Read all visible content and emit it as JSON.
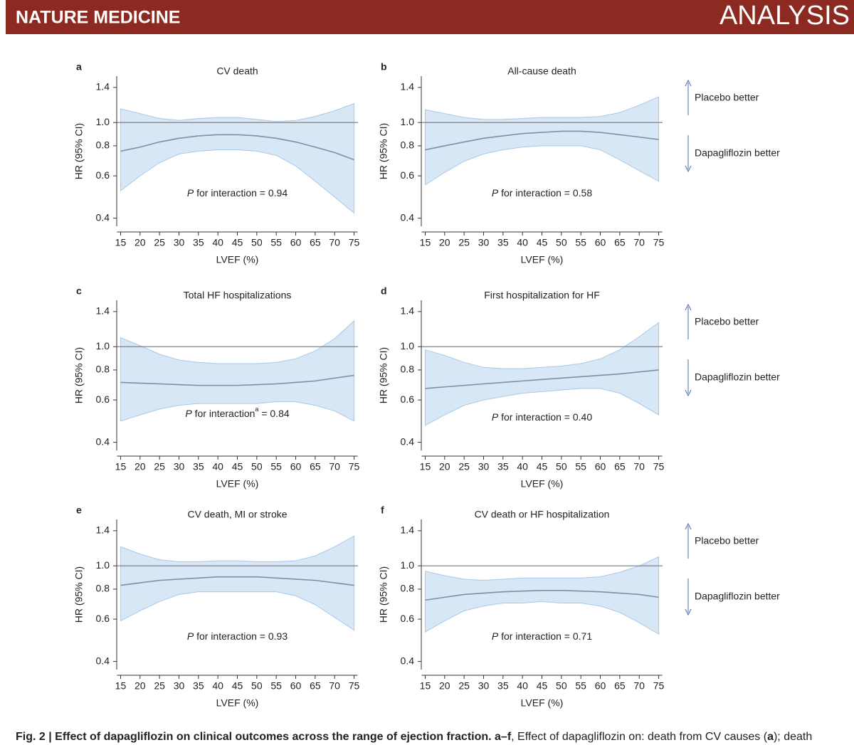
{
  "header": {
    "journal": "NATURE MEDICINE",
    "section": "ANALYSIS"
  },
  "side_labels": [
    {
      "up": "Placebo better",
      "down": "Dapagliflozin better"
    },
    {
      "up": "Placebo better",
      "down": "Dapagliflozin better"
    },
    {
      "up": "Placebo better",
      "down": "Dapagliflozin better"
    }
  ],
  "caption": [
    "Fig. 2 | Effect of dapagliflozin on clinical outcomes across the range of ejection fraction. a–f",
    ", Effect of dapagliflozin on: death from CV causes (",
    "a",
    "); death"
  ],
  "chart_data": [
    {
      "type": "line",
      "panel": "a",
      "title": "CV death",
      "xlabel": "LVEF (%)",
      "ylabel": "HR (95% CI)",
      "annotation": {
        "italic": "P",
        "text": " for interaction = 0.94"
      },
      "log_y": true,
      "reference_line": 1,
      "band_color": "#d7e7f6",
      "band_edge": "#a9c9e8",
      "xlim": [
        14,
        76
      ],
      "xticks": [
        15,
        20,
        25,
        30,
        35,
        40,
        45,
        50,
        55,
        60,
        65,
        70,
        75
      ],
      "ylim": [
        0.37,
        1.56
      ],
      "yticks": [
        0.4,
        0.6,
        0.8,
        {
          "value": 1,
          "label": "1.0"
        },
        1.4
      ],
      "x": [
        15,
        20,
        25,
        30,
        35,
        40,
        45,
        50,
        55,
        60,
        65,
        70,
        75
      ],
      "series": [
        {
          "color": "#7d8ea8",
          "values": [
            0.76,
            0.79,
            0.83,
            0.86,
            0.88,
            0.89,
            0.89,
            0.88,
            0.86,
            0.83,
            0.79,
            0.75,
            0.7
          ],
          "upper": [
            1.14,
            1.09,
            1.04,
            1.02,
            1.04,
            1.05,
            1.05,
            1.03,
            1.01,
            1.02,
            1.06,
            1.12,
            1.2
          ],
          "lower": [
            0.52,
            0.6,
            0.68,
            0.74,
            0.76,
            0.77,
            0.77,
            0.76,
            0.73,
            0.66,
            0.57,
            0.49,
            0.42
          ]
        }
      ]
    },
    {
      "type": "line",
      "panel": "b",
      "title": "All-cause death",
      "xlabel": "LVEF (%)",
      "ylabel": "HR (95% CI)",
      "annotation": {
        "italic": "P",
        "text": " for interaction = 0.58"
      },
      "log_y": true,
      "reference_line": 1,
      "band_color": "#d7e7f6",
      "band_edge": "#a9c9e8",
      "xlim": [
        14,
        76
      ],
      "xticks": [
        15,
        20,
        25,
        30,
        35,
        40,
        45,
        50,
        55,
        60,
        65,
        70,
        75
      ],
      "ylim": [
        0.37,
        1.56
      ],
      "yticks": [
        0.4,
        0.6,
        0.8,
        {
          "value": 1,
          "label": "1.0"
        },
        1.4
      ],
      "x": [
        15,
        20,
        25,
        30,
        35,
        40,
        45,
        50,
        55,
        60,
        65,
        70,
        75
      ],
      "series": [
        {
          "color": "#7d8ea8",
          "values": [
            0.77,
            0.8,
            0.83,
            0.86,
            0.88,
            0.9,
            0.91,
            0.92,
            0.92,
            0.91,
            0.89,
            0.87,
            0.85
          ],
          "upper": [
            1.13,
            1.09,
            1.05,
            1.03,
            1.03,
            1.04,
            1.05,
            1.05,
            1.05,
            1.06,
            1.1,
            1.18,
            1.28
          ],
          "lower": [
            0.55,
            0.62,
            0.69,
            0.74,
            0.77,
            0.79,
            0.8,
            0.8,
            0.8,
            0.77,
            0.7,
            0.63,
            0.57
          ]
        }
      ]
    },
    {
      "type": "line",
      "panel": "c",
      "title": "Total HF hospitalizations",
      "xlabel": "LVEF (%)",
      "ylabel": "HR (95% CI)",
      "annotation": {
        "italic": "P",
        "text": " for interaction",
        "sup": "a",
        "rest": " = 0.84"
      },
      "log_y": true,
      "reference_line": 1,
      "band_color": "#d7e7f6",
      "band_edge": "#a9c9e8",
      "xlim": [
        14,
        76
      ],
      "xticks": [
        15,
        20,
        25,
        30,
        35,
        40,
        45,
        50,
        55,
        60,
        65,
        70,
        75
      ],
      "ylim": [
        0.37,
        1.56
      ],
      "yticks": [
        0.4,
        0.6,
        0.8,
        {
          "value": 1,
          "label": "1.0"
        },
        1.4
      ],
      "x": [
        15,
        20,
        25,
        30,
        35,
        40,
        45,
        50,
        55,
        60,
        65,
        70,
        75
      ],
      "series": [
        {
          "color": "#7d8ea8",
          "values": [
            0.71,
            0.705,
            0.7,
            0.695,
            0.69,
            0.69,
            0.69,
            0.695,
            0.7,
            0.71,
            0.72,
            0.74,
            0.76
          ],
          "upper": [
            1.09,
            1.01,
            0.93,
            0.88,
            0.86,
            0.85,
            0.85,
            0.85,
            0.86,
            0.89,
            0.96,
            1.08,
            1.28
          ],
          "lower": [
            0.49,
            0.52,
            0.55,
            0.57,
            0.58,
            0.58,
            0.58,
            0.58,
            0.59,
            0.59,
            0.57,
            0.54,
            0.49
          ]
        }
      ]
    },
    {
      "type": "line",
      "panel": "d",
      "title": "First hospitalization for HF",
      "xlabel": "LVEF (%)",
      "ylabel": "HR (95% CI)",
      "annotation": {
        "italic": "P",
        "text": " for interaction = 0.40"
      },
      "log_y": true,
      "reference_line": 1,
      "band_color": "#d7e7f6",
      "band_edge": "#a9c9e8",
      "xlim": [
        14,
        76
      ],
      "xticks": [
        15,
        20,
        25,
        30,
        35,
        40,
        45,
        50,
        55,
        60,
        65,
        70,
        75
      ],
      "ylim": [
        0.37,
        1.56
      ],
      "yticks": [
        0.4,
        0.6,
        0.8,
        {
          "value": 1,
          "label": "1.0"
        },
        1.4
      ],
      "x": [
        15,
        20,
        25,
        30,
        35,
        40,
        45,
        50,
        55,
        60,
        65,
        70,
        75
      ],
      "series": [
        {
          "color": "#7d8ea8",
          "values": [
            0.67,
            0.68,
            0.69,
            0.7,
            0.71,
            0.72,
            0.73,
            0.74,
            0.75,
            0.76,
            0.77,
            0.785,
            0.8
          ],
          "upper": [
            0.97,
            0.92,
            0.86,
            0.82,
            0.81,
            0.81,
            0.82,
            0.83,
            0.85,
            0.89,
            0.97,
            1.1,
            1.26
          ],
          "lower": [
            0.47,
            0.52,
            0.57,
            0.6,
            0.62,
            0.64,
            0.65,
            0.66,
            0.67,
            0.67,
            0.64,
            0.58,
            0.52
          ]
        }
      ]
    },
    {
      "type": "line",
      "panel": "e",
      "title": "CV death, MI or stroke",
      "xlabel": "LVEF (%)",
      "ylabel": "HR (95% CI)",
      "annotation": {
        "italic": "P",
        "text": " for interaction = 0.93"
      },
      "log_y": true,
      "reference_line": 1,
      "band_color": "#d7e7f6",
      "band_edge": "#a9c9e8",
      "xlim": [
        14,
        76
      ],
      "xticks": [
        15,
        20,
        25,
        30,
        35,
        40,
        45,
        50,
        55,
        60,
        65,
        70,
        75
      ],
      "ylim": [
        0.37,
        1.56
      ],
      "yticks": [
        0.4,
        0.6,
        0.8,
        {
          "value": 1,
          "label": "1.0"
        },
        1.4
      ],
      "x": [
        15,
        20,
        25,
        30,
        35,
        40,
        45,
        50,
        55,
        60,
        65,
        70,
        75
      ],
      "series": [
        {
          "color": "#7d8ea8",
          "values": [
            0.83,
            0.85,
            0.87,
            0.88,
            0.89,
            0.9,
            0.9,
            0.9,
            0.89,
            0.88,
            0.87,
            0.85,
            0.83
          ],
          "upper": [
            1.2,
            1.12,
            1.06,
            1.04,
            1.04,
            1.05,
            1.05,
            1.04,
            1.04,
            1.05,
            1.1,
            1.2,
            1.33
          ],
          "lower": [
            0.59,
            0.65,
            0.71,
            0.76,
            0.78,
            0.78,
            0.78,
            0.78,
            0.78,
            0.75,
            0.69,
            0.61,
            0.54
          ]
        }
      ]
    },
    {
      "type": "line",
      "panel": "f",
      "title": "CV death or HF hospitalization",
      "xlabel": "LVEF (%)",
      "ylabel": "HR (95% CI)",
      "annotation": {
        "italic": "P",
        "text": " for interaction = 0.71"
      },
      "log_y": true,
      "reference_line": 1,
      "band_color": "#d7e7f6",
      "band_edge": "#a9c9e8",
      "xlim": [
        14,
        76
      ],
      "xticks": [
        15,
        20,
        25,
        30,
        35,
        40,
        45,
        50,
        55,
        60,
        65,
        70,
        75
      ],
      "ylim": [
        0.37,
        1.56
      ],
      "yticks": [
        0.4,
        0.6,
        0.8,
        {
          "value": 1,
          "label": "1.0"
        },
        1.4
      ],
      "x": [
        15,
        20,
        25,
        30,
        35,
        40,
        45,
        50,
        55,
        60,
        65,
        70,
        75
      ],
      "series": [
        {
          "color": "#7d8ea8",
          "values": [
            0.72,
            0.74,
            0.76,
            0.77,
            0.78,
            0.785,
            0.79,
            0.79,
            0.785,
            0.78,
            0.77,
            0.76,
            0.74
          ],
          "upper": [
            0.95,
            0.91,
            0.88,
            0.87,
            0.88,
            0.89,
            0.89,
            0.89,
            0.89,
            0.9,
            0.94,
            1.0,
            1.09
          ],
          "lower": [
            0.53,
            0.59,
            0.65,
            0.68,
            0.7,
            0.7,
            0.71,
            0.7,
            0.7,
            0.68,
            0.64,
            0.58,
            0.52
          ]
        }
      ]
    }
  ]
}
